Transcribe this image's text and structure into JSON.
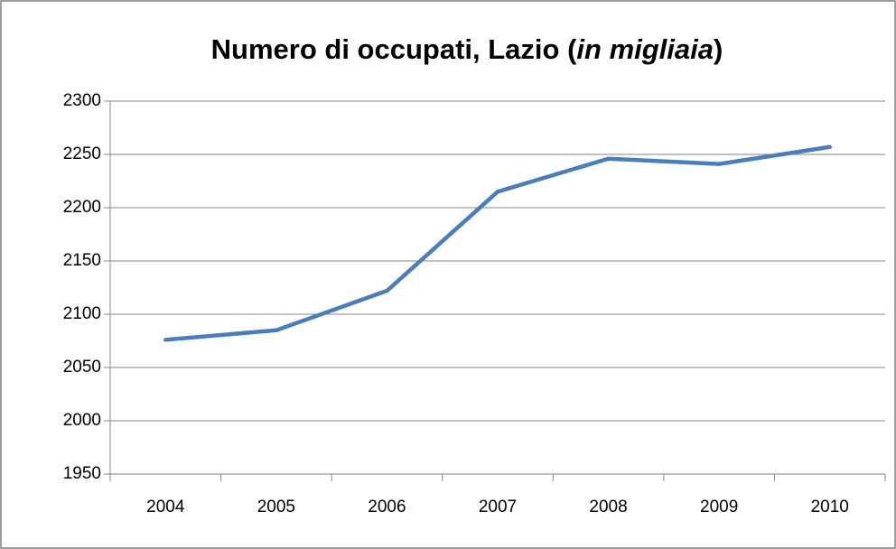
{
  "chart_data": {
    "type": "line",
    "title": [
      {
        "text": "Numero di occupati, Lazio (",
        "italic": false
      },
      {
        "text": "in migliaia",
        "italic": true
      },
      {
        "text": ")",
        "italic": false
      }
    ],
    "categories": [
      "2004",
      "2005",
      "2006",
      "2007",
      "2008",
      "2009",
      "2010"
    ],
    "series": [
      {
        "color": "#4a7ebb",
        "values": [
          2076,
          2085,
          2122,
          2215,
          2246,
          2241,
          2257
        ]
      }
    ],
    "ylim": [
      1950,
      2300
    ],
    "yticks": [
      1950,
      2000,
      2050,
      2100,
      2150,
      2200,
      2250,
      2300
    ],
    "grid": true
  }
}
